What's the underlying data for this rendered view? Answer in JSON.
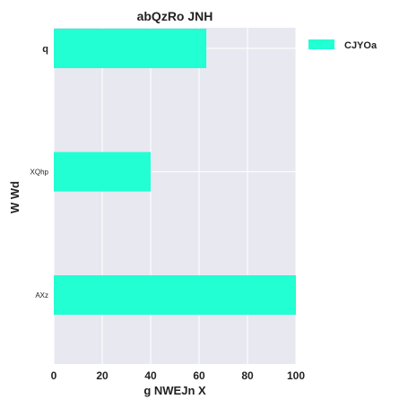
{
  "chart_data": {
    "type": "bar",
    "orientation": "horizontal",
    "title": "abQzRo JNH",
    "xlabel": "g NWEJn X",
    "ylabel": "W  Wd",
    "categories": [
      "q",
      "XQhp",
      "AXz"
    ],
    "series": [
      {
        "name": "CJYOa",
        "values": [
          63,
          40,
          100
        ]
      }
    ],
    "xlim": [
      0,
      100
    ],
    "xticks": [
      0,
      20,
      40,
      60,
      80,
      100
    ],
    "grid": true,
    "legend": "outside-top-right",
    "colors": {
      "bar": "#21ffd3",
      "plot_background": "#e8e8f1",
      "grid": "#ffffff"
    }
  }
}
